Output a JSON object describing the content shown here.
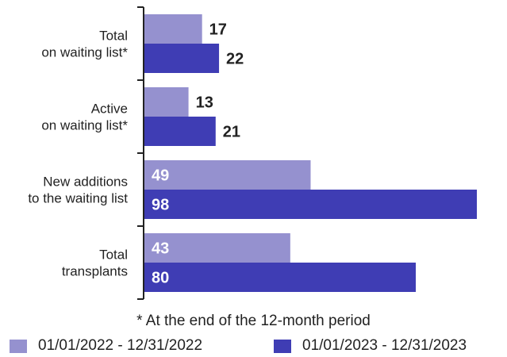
{
  "colors": {
    "period_2022": "#9591cf",
    "period_2023": "#3f3db4",
    "axis": "#222222",
    "label_outside": "#222222",
    "label_inside": "#ffffff"
  },
  "footnote": "* At the end of the 12-month period",
  "chart_data": {
    "type": "bar",
    "orientation": "horizontal",
    "categories": [
      [
        "Total",
        "on waiting list*"
      ],
      [
        "Active",
        "on waiting list*"
      ],
      [
        "New additions",
        "to the waiting list"
      ],
      [
        "Total",
        "transplants"
      ]
    ],
    "series": [
      {
        "name": "01/01/2022 - 12/31/2022",
        "values": [
          17,
          13,
          49,
          43
        ]
      },
      {
        "name": "01/01/2023 - 12/31/2023",
        "values": [
          22,
          21,
          98,
          80
        ]
      }
    ],
    "xlim": [
      0,
      100
    ],
    "grid": false,
    "legend_position": "bottom",
    "data_labels": true
  }
}
